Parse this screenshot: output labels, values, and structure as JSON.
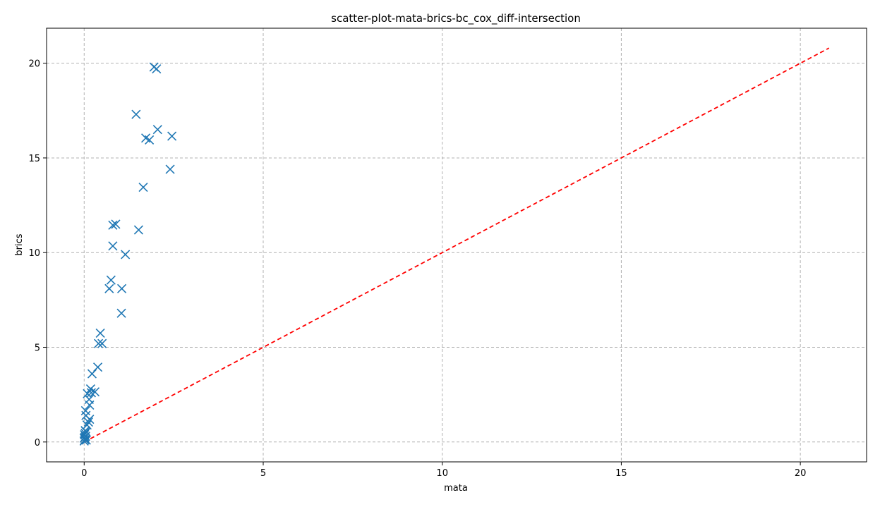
{
  "chart_data": {
    "type": "scatter",
    "title": "scatter-plot-mata-brics-bc_cox_diff-intersection",
    "xlabel": "mata",
    "ylabel": "brics",
    "xlim": [
      -1.05,
      21.85
    ],
    "ylim": [
      -1.05,
      21.85
    ],
    "xticks": [
      0,
      5,
      10,
      15,
      20
    ],
    "yticks": [
      0,
      5,
      10,
      15,
      20
    ],
    "grid": true,
    "marker": "x",
    "series_color": "#1f77b4",
    "reference_line": {
      "from": [
        0,
        0
      ],
      "to": [
        20.8,
        20.8
      ],
      "color": "#ff0000",
      "style": "dashed"
    },
    "points": [
      [
        0.0,
        0.05
      ],
      [
        0.02,
        0.12
      ],
      [
        0.0,
        0.2
      ],
      [
        0.04,
        0.3
      ],
      [
        0.01,
        0.38
      ],
      [
        0.03,
        0.45
      ],
      [
        0.05,
        0.55
      ],
      [
        0.02,
        0.25
      ],
      [
        0.06,
        0.1
      ],
      [
        0.03,
        0.6
      ],
      [
        0.08,
        0.9
      ],
      [
        0.12,
        1.05
      ],
      [
        0.15,
        1.2
      ],
      [
        0.05,
        1.4
      ],
      [
        0.04,
        1.65
      ],
      [
        0.15,
        1.95
      ],
      [
        0.14,
        2.25
      ],
      [
        0.09,
        2.55
      ],
      [
        0.18,
        2.8
      ],
      [
        0.3,
        2.65
      ],
      [
        0.2,
        2.6
      ],
      [
        0.22,
        3.6
      ],
      [
        0.38,
        3.95
      ],
      [
        0.4,
        5.2
      ],
      [
        0.5,
        5.2
      ],
      [
        0.45,
        5.75
      ],
      [
        0.75,
        8.55
      ],
      [
        0.7,
        8.1
      ],
      [
        1.05,
        8.1
      ],
      [
        1.04,
        6.8
      ],
      [
        0.8,
        10.35
      ],
      [
        1.15,
        9.9
      ],
      [
        0.8,
        11.45
      ],
      [
        0.88,
        11.5
      ],
      [
        1.52,
        11.2
      ],
      [
        1.65,
        13.45
      ],
      [
        1.45,
        17.3
      ],
      [
        1.72,
        16.05
      ],
      [
        1.82,
        15.95
      ],
      [
        2.05,
        16.5
      ],
      [
        2.45,
        16.15
      ],
      [
        2.4,
        14.4
      ],
      [
        1.95,
        19.8
      ],
      [
        2.02,
        19.7
      ]
    ]
  }
}
